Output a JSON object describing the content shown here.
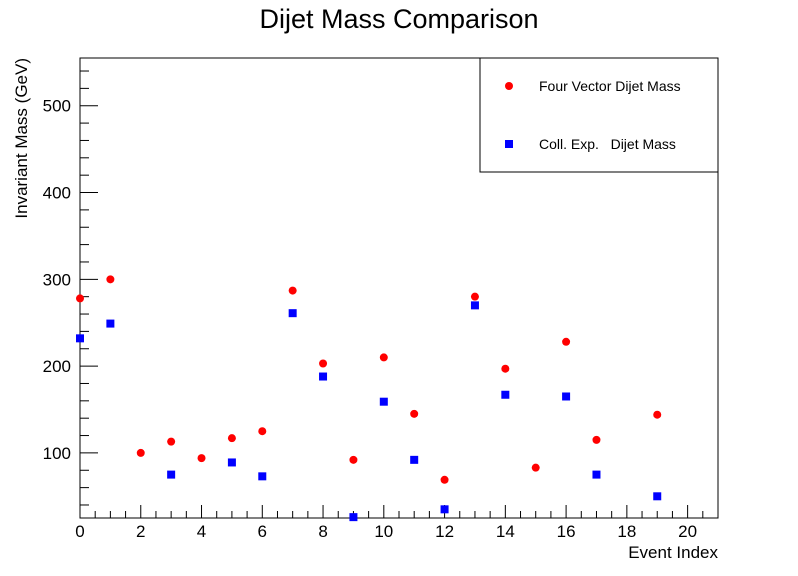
{
  "chart_data": {
    "type": "scatter",
    "title": "Dijet Mass Comparison",
    "xlabel": "Event Index",
    "ylabel": "Invariant Mass (GeV)",
    "xlim": [
      0,
      21
    ],
    "ylim": [
      25,
      555
    ],
    "x_ticks": [
      0,
      2,
      4,
      6,
      8,
      10,
      12,
      14,
      16,
      18,
      20
    ],
    "y_ticks": [
      100,
      200,
      300,
      400,
      500
    ],
    "grid": false,
    "legend_position": "top-right",
    "series": [
      {
        "name": "Four Vector Dijet Mass",
        "marker": "circle",
        "color": "#ff0000",
        "x": [
          0,
          1,
          2,
          3,
          4,
          5,
          6,
          7,
          8,
          9,
          10,
          11,
          12,
          13,
          14,
          15,
          16,
          17,
          19
        ],
        "y": [
          278,
          300,
          100,
          113,
          94,
          117,
          125,
          287,
          203,
          92,
          210,
          145,
          69,
          280,
          197,
          83,
          228,
          115,
          144
        ]
      },
      {
        "name": "Coll. Exp.   Dijet Mass",
        "marker": "square",
        "color": "#0000ff",
        "x": [
          0,
          1,
          3,
          5,
          6,
          7,
          8,
          9,
          10,
          11,
          12,
          13,
          14,
          16,
          17,
          19
        ],
        "y": [
          232,
          249,
          75,
          89,
          73,
          261,
          188,
          26,
          159,
          92,
          35,
          270,
          167,
          165,
          75,
          50
        ]
      }
    ]
  }
}
